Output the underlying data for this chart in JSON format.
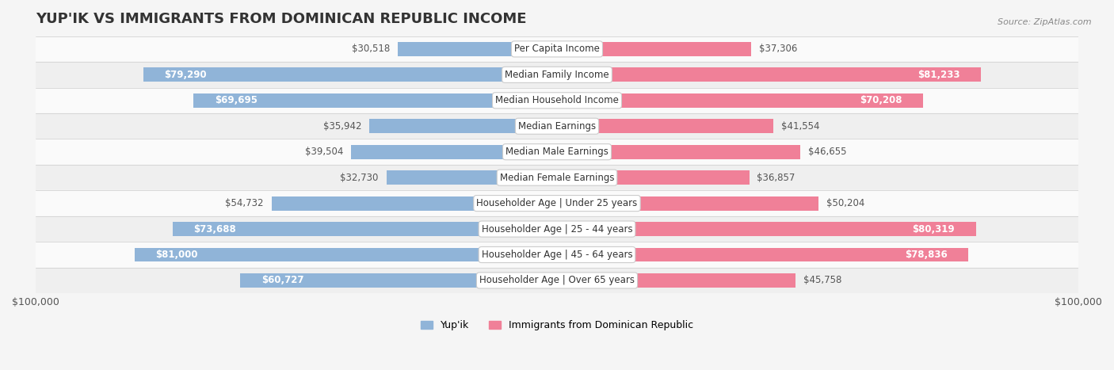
{
  "title": "YUP'IK VS IMMIGRANTS FROM DOMINICAN REPUBLIC INCOME",
  "source": "Source: ZipAtlas.com",
  "categories": [
    "Per Capita Income",
    "Median Family Income",
    "Median Household Income",
    "Median Earnings",
    "Median Male Earnings",
    "Median Female Earnings",
    "Householder Age | Under 25 years",
    "Householder Age | 25 - 44 years",
    "Householder Age | 45 - 64 years",
    "Householder Age | Over 65 years"
  ],
  "yupik_values": [
    30518,
    79290,
    69695,
    35942,
    39504,
    32730,
    54732,
    73688,
    81000,
    60727
  ],
  "dominican_values": [
    37306,
    81233,
    70208,
    41554,
    46655,
    36857,
    50204,
    80319,
    78836,
    45758
  ],
  "yupik_labels": [
    "$30,518",
    "$79,290",
    "$69,695",
    "$35,942",
    "$39,504",
    "$32,730",
    "$54,732",
    "$73,688",
    "$81,000",
    "$60,727"
  ],
  "dominican_labels": [
    "$37,306",
    "$81,233",
    "$70,208",
    "$41,554",
    "$46,655",
    "$36,857",
    "$50,204",
    "$80,319",
    "$78,836",
    "$45,758"
  ],
  "max_value": 100000,
  "yupik_color": "#90b4d8",
  "dominican_color": "#f08098",
  "yupik_color_dark": "#6699cc",
  "dominican_color_dark": "#e8607a",
  "bg_color": "#f5f5f5",
  "row_bg_even": "#efefef",
  "row_bg_odd": "#fafafa",
  "legend_yupik": "Yup'ik",
  "legend_dominican": "Immigrants from Dominican Republic",
  "xlabel_left": "$100,000",
  "xlabel_right": "$100,000",
  "title_fontsize": 13,
  "label_fontsize": 8.5,
  "category_fontsize": 8.5,
  "bar_height": 0.55
}
